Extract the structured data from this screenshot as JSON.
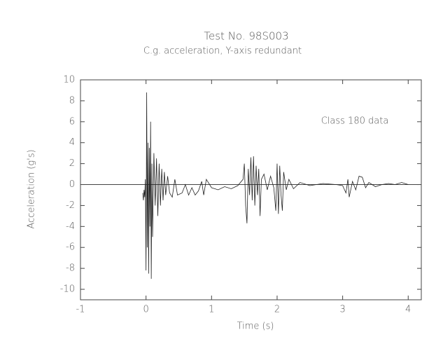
{
  "chart_data": {
    "type": "line",
    "title": "Test No. 98S003",
    "subtitle": "C.g. acceleration, Y-axis redundant",
    "annotation": "Class 180 data",
    "x_label": "Time (s)",
    "y_label": "Acceleration (g's)",
    "color": "#222222",
    "xlim": [
      -1,
      4.2
    ],
    "ylim": [
      -11,
      10
    ],
    "xticks": [
      -1,
      0,
      1,
      2,
      3,
      4
    ],
    "yticks": [
      -10,
      -8,
      -6,
      -4,
      -2,
      0,
      2,
      4,
      6,
      8,
      10
    ],
    "x": [
      -0.05,
      -0.04,
      -0.03,
      -0.02,
      -0.01,
      0,
      0.01,
      0.02,
      0.03,
      0.04,
      0.05,
      0.06,
      0.07,
      0.08,
      0.09,
      0.1,
      0.12,
      0.14,
      0.16,
      0.18,
      0.2,
      0.22,
      0.24,
      0.26,
      0.28,
      0.3,
      0.33,
      0.36,
      0.4,
      0.44,
      0.48,
      0.55,
      0.6,
      0.65,
      0.7,
      0.75,
      0.8,
      0.85,
      0.88,
      0.92,
      1.0,
      1.1,
      1.2,
      1.3,
      1.4,
      1.48,
      1.5,
      1.52,
      1.54,
      1.56,
      1.58,
      1.6,
      1.62,
      1.64,
      1.66,
      1.68,
      1.7,
      1.72,
      1.74,
      1.76,
      1.8,
      1.85,
      1.9,
      1.95,
      1.98,
      2.0,
      2.02,
      2.04,
      2.06,
      2.08,
      2.1,
      2.14,
      2.18,
      2.25,
      2.35,
      2.5,
      2.7,
      2.9,
      3.0,
      3.05,
      3.08,
      3.1,
      3.15,
      3.2,
      3.25,
      3.3,
      3.35,
      3.4,
      3.5,
      3.6,
      3.7,
      3.8,
      3.9,
      3.95,
      4.0
    ],
    "values": [
      -0.8,
      -1.5,
      -0.5,
      -1.2,
      0.5,
      -8.2,
      8.8,
      -6,
      4,
      -8.5,
      3.5,
      -4,
      6,
      -9,
      2,
      -5,
      3,
      -2,
      2.5,
      -3,
      2,
      -2,
      1.5,
      -1.5,
      1.2,
      -1,
      0.8,
      -0.8,
      -1.2,
      0.5,
      -1,
      -0.8,
      0,
      -1,
      -0.3,
      -1,
      -0.6,
      0.3,
      -1,
      0.5,
      -0.3,
      -0.5,
      -0.2,
      -0.4,
      -0.1,
      0.5,
      2,
      -2,
      -3.7,
      1.5,
      -1,
      2.6,
      -1.5,
      2.7,
      -2,
      1.8,
      -1,
      1.5,
      -3,
      0.5,
      1,
      -0.5,
      0.8,
      -0.3,
      -2.5,
      2,
      -2.8,
      1.8,
      -1,
      -2.5,
      1.2,
      -0.5,
      0.5,
      -0.4,
      0.2,
      -0.1,
      0.1,
      0,
      -0.1,
      -0.8,
      0.5,
      -1.2,
      0.3,
      -0.5,
      0.8,
      0.7,
      -0.3,
      0.2,
      -0.2,
      0,
      0.1,
      0,
      0.2,
      0.1,
      0
    ]
  }
}
